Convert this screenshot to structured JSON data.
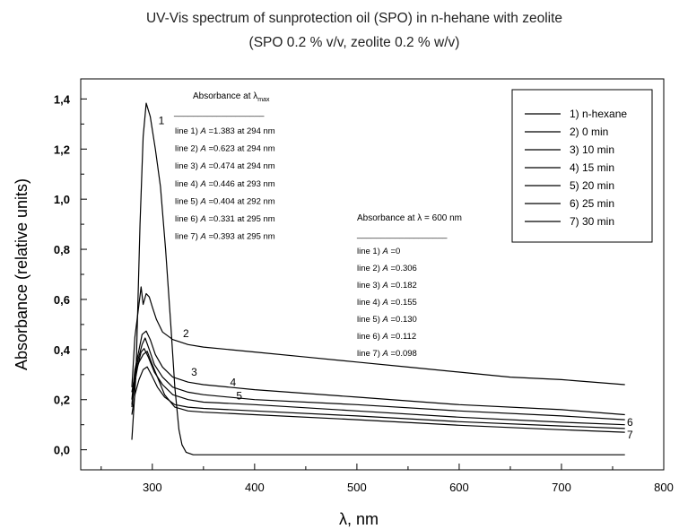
{
  "chart_data": {
    "type": "line",
    "title": "UV-Vis spectrum of sunprotection oil (SPO) in n-hehane with zeolite",
    "subtitle": "(SPO 0.2 % v/v, zeolite 0.2 % w/v)",
    "xlabel": "λ, nm",
    "ylabel": "Absorbance (relative units)",
    "xlim": [
      230,
      800
    ],
    "ylim": [
      -0.08,
      1.48
    ],
    "xticks": [
      300,
      400,
      500,
      600,
      700,
      800
    ],
    "xtick_labels": [
      "300",
      "400",
      "500",
      "600",
      "700",
      "800"
    ],
    "yticks": [
      0.0,
      0.2,
      0.4,
      0.6,
      0.8,
      1.0,
      1.2,
      1.4
    ],
    "ytick_labels": [
      "0,0",
      "0,2",
      "0,4",
      "0,6",
      "0,8",
      "1,0",
      "1,2",
      "1,4"
    ],
    "legend_position": "top-right",
    "series": [
      {
        "name": "1) n-hexane",
        "label": "1",
        "x": [
          280,
          284,
          288,
          291,
          294,
          298,
          303,
          308,
          313,
          318,
          322,
          326,
          329,
          333,
          340,
          360,
          400,
          500,
          600,
          700,
          762
        ],
        "y": [
          0.04,
          0.3,
          0.9,
          1.25,
          1.383,
          1.33,
          1.2,
          1.05,
          0.8,
          0.5,
          0.25,
          0.08,
          0.02,
          -0.01,
          -0.02,
          -0.02,
          -0.02,
          -0.02,
          -0.02,
          -0.02,
          -0.02
        ]
      },
      {
        "name": "2)  0 min",
        "label": "2",
        "x": [
          280,
          283,
          286,
          289,
          291,
          294,
          297,
          300,
          304,
          310,
          320,
          335,
          350,
          400,
          450,
          500,
          550,
          600,
          650,
          700,
          762
        ],
        "y": [
          0.25,
          0.45,
          0.55,
          0.65,
          0.58,
          0.623,
          0.61,
          0.57,
          0.52,
          0.47,
          0.44,
          0.42,
          0.41,
          0.39,
          0.37,
          0.35,
          0.33,
          0.31,
          0.29,
          0.28,
          0.26
        ]
      },
      {
        "name": "3)  10 min",
        "label": "3",
        "x": [
          280,
          283,
          286,
          290,
          294,
          298,
          303,
          310,
          320,
          335,
          350,
          400,
          500,
          600,
          700,
          762
        ],
        "y": [
          0.2,
          0.32,
          0.38,
          0.46,
          0.474,
          0.44,
          0.38,
          0.33,
          0.29,
          0.27,
          0.26,
          0.24,
          0.21,
          0.18,
          0.16,
          0.14
        ]
      },
      {
        "name": "4)  15 min",
        "label": "4",
        "x": [
          280,
          283,
          286,
          290,
          293,
          297,
          302,
          310,
          320,
          335,
          350,
          400,
          500,
          600,
          700,
          762
        ],
        "y": [
          0.18,
          0.3,
          0.36,
          0.42,
          0.446,
          0.4,
          0.34,
          0.29,
          0.25,
          0.23,
          0.22,
          0.2,
          0.18,
          0.155,
          0.135,
          0.12
        ]
      },
      {
        "name": "5)  20 min",
        "label": "5",
        "x": [
          280,
          283,
          286,
          289,
          292,
          296,
          302,
          310,
          320,
          335,
          350,
          400,
          500,
          600,
          700,
          762
        ],
        "y": [
          0.17,
          0.27,
          0.34,
          0.39,
          0.404,
          0.37,
          0.31,
          0.26,
          0.22,
          0.2,
          0.19,
          0.18,
          0.155,
          0.13,
          0.11,
          0.1
        ]
      },
      {
        "name": "6)  25 min",
        "label": "6",
        "x": [
          280,
          283,
          287,
          291,
          295,
          299,
          305,
          312,
          322,
          335,
          350,
          400,
          500,
          600,
          700,
          762
        ],
        "y": [
          0.14,
          0.22,
          0.28,
          0.32,
          0.331,
          0.3,
          0.25,
          0.21,
          0.18,
          0.17,
          0.165,
          0.155,
          0.135,
          0.112,
          0.095,
          0.085
        ]
      },
      {
        "name": "7)  30 min",
        "label": "7",
        "x": [
          280,
          283,
          287,
          291,
          295,
          299,
          305,
          312,
          322,
          335,
          350,
          400,
          500,
          600,
          700,
          762
        ],
        "y": [
          0.23,
          0.3,
          0.35,
          0.38,
          0.393,
          0.35,
          0.29,
          0.22,
          0.17,
          0.155,
          0.15,
          0.14,
          0.12,
          0.098,
          0.08,
          0.07
        ]
      }
    ],
    "annotations": {
      "lambda_max": {
        "heading": "Absorbance at λ",
        "heading_sub": "max",
        "rule": "___________________",
        "lines": [
          "line 1) A =1.383 at 294 nm",
          "line 2) A =0.623 at 294 nm",
          "line 3) A =0.474 at 294 nm",
          "line 4) A =0.446 at 293 nm",
          "line 5) A =0.404 at 292 nm",
          "line 6) A =0.331 at 295 nm",
          "line 7) A =0.393 at 295 nm"
        ]
      },
      "lambda_600": {
        "heading": "Absorbance at  λ = 600 nm",
        "rule": "___________________",
        "lines": [
          "line 1) A =0",
          "line 2) A =0.306",
          "line 3) A =0.182",
          "line 4) A =0.155",
          "line 5) A =0.130",
          "line 6) A =0.112",
          "line 7) A =0.098"
        ]
      }
    }
  }
}
